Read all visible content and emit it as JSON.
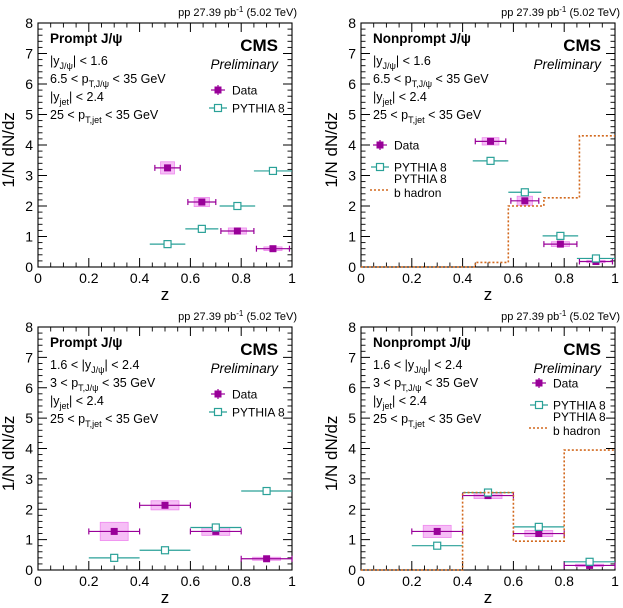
{
  "chart_data": [
    {
      "type": "scatter",
      "lumi_label": "pp 27.39 pb",
      "lumi_sup": "-1",
      "lumi_energy": "(5.02 TeV)",
      "title": "Prompt J/ψ",
      "cms_label": "CMS",
      "prelim_label": "Preliminary",
      "cuts": [
        {
          "pre": "|y",
          "sub": "J/ψ",
          "post": "| < 1.6"
        },
        {
          "pre": "6.5 < p",
          "sub": "T,J/ψ",
          "post": " < 35 GeV"
        },
        {
          "pre": "|y",
          "sub": "jet",
          "post": "| < 2.4"
        },
        {
          "pre": "25 < p",
          "sub": "T,jet",
          "post": " < 35 GeV"
        }
      ],
      "xlabel": "z",
      "ylabel": "1/N dN/dz",
      "xlim": [
        0,
        1
      ],
      "ylim": [
        0,
        8
      ],
      "xticks": [
        "0",
        "0.2",
        "0.4",
        "0.6",
        "0.8",
        "1"
      ],
      "yticks": [
        "0",
        "1",
        "2",
        "3",
        "4",
        "5",
        "6",
        "7",
        "8"
      ],
      "legend": [
        "Data",
        "PYTHIA 8"
      ],
      "series": [
        {
          "name": "Data",
          "points": [
            {
              "x": 0.51,
              "y": 3.25,
              "xerr": 0.05,
              "syst": 0.2
            },
            {
              "x": 0.645,
              "y": 2.13,
              "xerr": 0.055,
              "syst": 0.15
            },
            {
              "x": 0.785,
              "y": 1.18,
              "xerr": 0.065,
              "syst": 0.1
            },
            {
              "x": 0.925,
              "y": 0.6,
              "xerr": 0.065,
              "syst": 0.06
            }
          ]
        },
        {
          "name": "PYTHIA 8",
          "points": [
            {
              "x": 0.51,
              "y": 0.75,
              "xerr": 0.07
            },
            {
              "x": 0.645,
              "y": 1.25,
              "xerr": 0.065
            },
            {
              "x": 0.785,
              "y": 2.0,
              "xerr": 0.07
            },
            {
              "x": 0.925,
              "y": 3.15,
              "xerr": 0.075
            }
          ]
        }
      ]
    },
    {
      "type": "scatter",
      "lumi_label": "pp 27.39 pb",
      "lumi_sup": "-1",
      "lumi_energy": "(5.02 TeV)",
      "title": "Nonprompt J/ψ",
      "cms_label": "CMS",
      "prelim_label": "Preliminary",
      "cuts": [
        {
          "pre": "|y",
          "sub": "J/ψ",
          "post": "| < 1.6"
        },
        {
          "pre": "6.5 < p",
          "sub": "T,J/ψ",
          "post": " < 35 GeV"
        },
        {
          "pre": "|y",
          "sub": "jet",
          "post": "| < 2.4"
        },
        {
          "pre": "25 < p",
          "sub": "T,jet",
          "post": " < 35 GeV"
        }
      ],
      "xlabel": "z",
      "ylabel": "1/N dN/dz",
      "xlim": [
        0,
        1
      ],
      "ylim": [
        0,
        8
      ],
      "xticks": [
        "0",
        "0.2",
        "0.4",
        "0.6",
        "0.8",
        "1"
      ],
      "yticks": [
        "0",
        "1",
        "2",
        "3",
        "4",
        "5",
        "6",
        "7",
        "8"
      ],
      "legend": [
        "Data",
        "PYTHIA 8",
        "PYTHIA 8",
        "b hadron"
      ],
      "series": [
        {
          "name": "Data",
          "points": [
            {
              "x": 0.51,
              "y": 4.12,
              "xerr": 0.06,
              "syst": 0.12
            },
            {
              "x": 0.645,
              "y": 2.17,
              "xerr": 0.055,
              "syst": 0.15
            },
            {
              "x": 0.785,
              "y": 0.75,
              "xerr": 0.065,
              "syst": 0.08
            },
            {
              "x": 0.925,
              "y": 0.18,
              "xerr": 0.065,
              "syst": 0.04
            }
          ]
        },
        {
          "name": "PYTHIA 8",
          "points": [
            {
              "x": 0.51,
              "y": 3.48,
              "xerr": 0.07
            },
            {
              "x": 0.645,
              "y": 2.45,
              "xerr": 0.065
            },
            {
              "x": 0.785,
              "y": 1.02,
              "xerr": 0.07
            },
            {
              "x": 0.925,
              "y": 0.28,
              "xerr": 0.075
            }
          ]
        },
        {
          "name": "PYTHIA 8 b hadron",
          "kind": "step",
          "edges": [
            0.0,
            0.45,
            0.58,
            0.72,
            0.86,
            1.0
          ],
          "values": [
            0.0,
            0.15,
            2.0,
            2.27,
            4.3
          ]
        }
      ]
    },
    {
      "type": "scatter",
      "lumi_label": "pp 27.39 pb",
      "lumi_sup": "-1",
      "lumi_energy": "(5.02 TeV)",
      "title": "Prompt J/ψ",
      "cms_label": "CMS",
      "prelim_label": "Preliminary",
      "cuts": [
        {
          "pre": "1.6 < |y",
          "sub": "J/ψ",
          "post": "| < 2.4"
        },
        {
          "pre": "3 < p",
          "sub": "T,J/ψ",
          "post": " < 35 GeV"
        },
        {
          "pre": "|y",
          "sub": "jet",
          "post": "| < 2.4"
        },
        {
          "pre": "25 < p",
          "sub": "T,jet",
          "post": " < 35 GeV"
        }
      ],
      "xlabel": "z",
      "ylabel": "1/N dN/dz",
      "xlim": [
        0,
        1
      ],
      "ylim": [
        0,
        8
      ],
      "xticks": [
        "0",
        "0.2",
        "0.4",
        "0.6",
        "0.8",
        "1"
      ],
      "yticks": [
        "0",
        "1",
        "2",
        "3",
        "4",
        "5",
        "6",
        "7",
        "8"
      ],
      "legend": [
        "Data",
        "PYTHIA 8"
      ],
      "series": [
        {
          "name": "Data",
          "points": [
            {
              "x": 0.3,
              "y": 1.27,
              "xerr": 0.1,
              "syst": 0.3
            },
            {
              "x": 0.5,
              "y": 2.13,
              "xerr": 0.1,
              "syst": 0.15
            },
            {
              "x": 0.7,
              "y": 1.27,
              "xerr": 0.1,
              "syst": 0.13
            },
            {
              "x": 0.9,
              "y": 0.37,
              "xerr": 0.1,
              "syst": 0.05
            }
          ]
        },
        {
          "name": "PYTHIA 8",
          "points": [
            {
              "x": 0.3,
              "y": 0.4,
              "xerr": 0.1
            },
            {
              "x": 0.5,
              "y": 0.65,
              "xerr": 0.1
            },
            {
              "x": 0.7,
              "y": 1.4,
              "xerr": 0.1
            },
            {
              "x": 0.9,
              "y": 2.6,
              "xerr": 0.1
            }
          ]
        }
      ]
    },
    {
      "type": "scatter",
      "lumi_label": "pp 27.39 pb",
      "lumi_sup": "-1",
      "lumi_energy": "(5.02 TeV)",
      "title": "Nonprompt J/ψ",
      "cms_label": "CMS",
      "prelim_label": "Preliminary",
      "cuts": [
        {
          "pre": "1.6 < |y",
          "sub": "J/ψ",
          "post": "| < 2.4"
        },
        {
          "pre": "3 < p",
          "sub": "T,J/ψ",
          "post": " < 35 GeV"
        },
        {
          "pre": "|y",
          "sub": "jet",
          "post": "| < 2.4"
        },
        {
          "pre": "25 < p",
          "sub": "T,jet",
          "post": " < 35 GeV"
        }
      ],
      "xlabel": "z",
      "ylabel": "1/N dN/dz",
      "xlim": [
        0,
        1
      ],
      "ylim": [
        0,
        8
      ],
      "xticks": [
        "0",
        "0.2",
        "0.4",
        "0.6",
        "0.8",
        "1"
      ],
      "yticks": [
        "0",
        "1",
        "2",
        "3",
        "4",
        "5",
        "6",
        "7",
        "8"
      ],
      "legend": [
        "Data",
        "PYTHIA 8",
        "PYTHIA 8",
        "b hadron"
      ],
      "series": [
        {
          "name": "Data",
          "points": [
            {
              "x": 0.3,
              "y": 1.27,
              "xerr": 0.1,
              "syst": 0.2
            },
            {
              "x": 0.5,
              "y": 2.45,
              "xerr": 0.1,
              "syst": 0.1
            },
            {
              "x": 0.7,
              "y": 1.2,
              "xerr": 0.1,
              "syst": 0.1
            },
            {
              "x": 0.9,
              "y": 0.15,
              "xerr": 0.1,
              "syst": 0.04
            }
          ]
        },
        {
          "name": "PYTHIA 8",
          "points": [
            {
              "x": 0.3,
              "y": 0.8,
              "xerr": 0.1
            },
            {
              "x": 0.5,
              "y": 2.55,
              "xerr": 0.1
            },
            {
              "x": 0.7,
              "y": 1.42,
              "xerr": 0.1
            },
            {
              "x": 0.9,
              "y": 0.27,
              "xerr": 0.1
            }
          ]
        },
        {
          "name": "PYTHIA 8 b hadron",
          "kind": "step",
          "edges": [
            0.0,
            0.2,
            0.4,
            0.6,
            0.8,
            1.0
          ],
          "values": [
            0.0,
            0.0,
            2.55,
            0.95,
            3.95
          ]
        }
      ]
    }
  ],
  "colors": {
    "data": "#990099",
    "data_fill": "#ee88ee",
    "pythia": "#2aa198",
    "bhadron": "#d2691e"
  }
}
